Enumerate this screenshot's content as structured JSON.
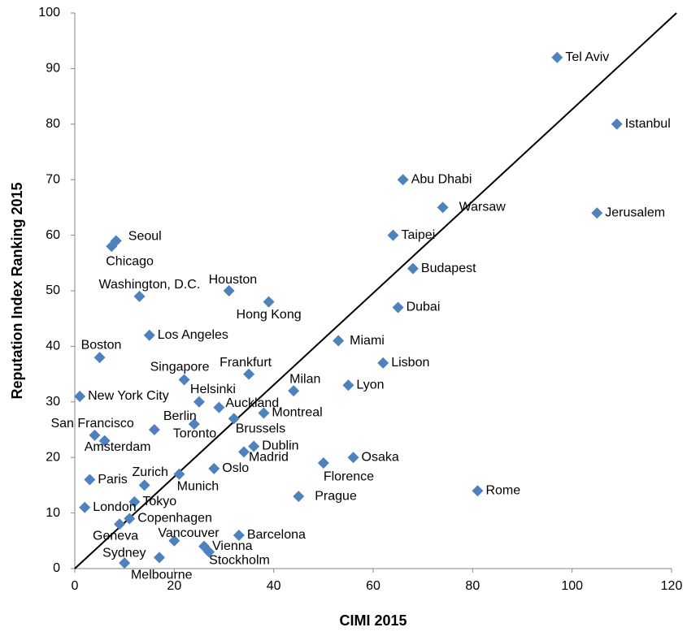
{
  "chart_data": {
    "type": "scatter",
    "x_label": "CIMI 2015",
    "y_label": "Reputation Index Ranking 2015",
    "color": "#4f81bd",
    "xlim": [
      0,
      120
    ],
    "xticks": [
      0,
      20,
      40,
      60,
      80,
      100,
      120
    ],
    "ylim": [
      0,
      100
    ],
    "yticks": [
      0,
      10,
      20,
      30,
      40,
      50,
      60,
      70,
      80,
      90,
      100
    ],
    "reference_line": {
      "x": [
        0,
        121
      ],
      "y": [
        0,
        100
      ]
    },
    "labels": [
      "Tel Aviv",
      "Istanbul",
      "Abu Dhabi",
      "Warsaw",
      "Jerusalem",
      "Taipei",
      "Budapest",
      "Dubai",
      "Miami",
      "Lisbon",
      "Lyon",
      "Milan",
      "Montreal",
      "Osaka",
      "Florence",
      "Prague",
      "Rome",
      "Seoul",
      "Chicago",
      "Houston",
      "Washington, D.C.",
      "Hong Kong",
      "Los Angeles",
      "Boston",
      "Frankfurt",
      "Singapore",
      "Helsinki",
      "Auckland",
      "New York City",
      "Brussels",
      "Toronto",
      "Berlin",
      "San Francisco",
      "Amsterdam",
      "Dublin",
      "Madrid",
      "Oslo",
      "Zurich",
      "Paris",
      "Munich",
      "Tokyo",
      "London",
      "Copenhagen",
      "Geneva",
      "Vancouver",
      "Barcelona",
      "Vienna",
      "Stockholm",
      "Melbourne",
      "Sydney"
    ],
    "x": [
      97,
      109,
      66,
      74,
      105,
      64,
      68,
      65,
      53,
      62,
      55,
      44,
      38,
      56,
      50,
      45,
      81,
      8.3,
      7.4,
      31,
      13,
      39,
      15,
      5,
      35,
      22,
      25,
      29,
      1,
      32,
      24,
      16,
      4,
      6,
      36,
      34,
      28,
      21,
      3,
      14,
      12,
      2,
      11,
      9,
      20,
      33,
      26,
      27,
      17,
      10
    ],
    "y": [
      92,
      80,
      70,
      65,
      64,
      60,
      54,
      47,
      41,
      37,
      33,
      32,
      28,
      20,
      19,
      13,
      14,
      59,
      58,
      50,
      49,
      48,
      42,
      38,
      35,
      34,
      30,
      29,
      31,
      27,
      26,
      25,
      24,
      23,
      22,
      21,
      18,
      17,
      16,
      15,
      12,
      11,
      9,
      8,
      5,
      6,
      4,
      3,
      2,
      1
    ]
  }
}
